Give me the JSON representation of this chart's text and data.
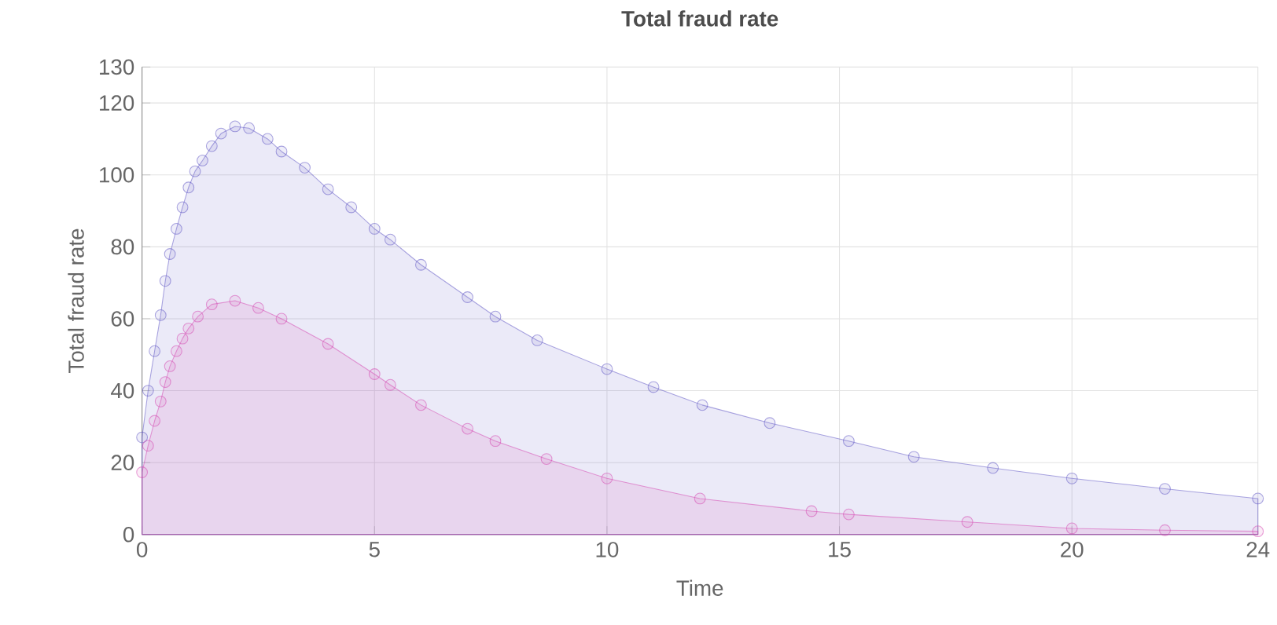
{
  "chart_data": {
    "type": "area",
    "title": "Total fraud rate",
    "xlabel": "Time",
    "ylabel": "Total fraud rate",
    "xlim": [
      0,
      24
    ],
    "xticks": [
      0,
      5,
      10,
      15,
      20,
      24
    ],
    "ylim": [
      0,
      130
    ],
    "yticks": [
      0,
      20,
      40,
      60,
      80,
      100,
      120,
      130
    ],
    "grid": true,
    "marker": "circle",
    "series": [
      {
        "color": "#5a50c4",
        "x": [
          0,
          0.13,
          0.27,
          0.4,
          0.5,
          0.6,
          0.74,
          0.87,
          1.0,
          1.14,
          1.3,
          1.5,
          1.7,
          2.0,
          2.3,
          2.7,
          3.0,
          3.5,
          4.0,
          4.5,
          5.0,
          5.34,
          6.0,
          7.0,
          7.6,
          8.5,
          10.0,
          11.0,
          12.05,
          13.5,
          15.2,
          16.6,
          18.3,
          20.0,
          22.0,
          24.0
        ],
        "values": [
          27,
          40,
          51,
          61,
          70.5,
          78,
          85,
          91,
          96.5,
          101,
          104,
          108,
          111.5,
          113.5,
          113,
          110,
          106.5,
          102,
          96,
          91,
          85,
          82,
          75,
          66,
          60.6,
          54,
          46,
          41,
          36,
          31,
          26,
          21.6,
          18.5,
          15.6,
          12.7,
          10
        ]
      },
      {
        "color": "#d63fb0",
        "x": [
          0,
          0.13,
          0.27,
          0.4,
          0.5,
          0.6,
          0.74,
          0.87,
          1.0,
          1.2,
          1.5,
          2.0,
          2.5,
          3.0,
          4.0,
          5.0,
          5.34,
          6.0,
          7.0,
          7.6,
          8.7,
          10.0,
          12.0,
          14.4,
          15.2,
          17.75,
          20.0,
          22.0,
          24.0
        ],
        "values": [
          17.3,
          24.7,
          31.6,
          37,
          42.4,
          46.8,
          51,
          54.5,
          57.3,
          60.6,
          64,
          65,
          63,
          60,
          53,
          44.6,
          41.6,
          36,
          29.4,
          26,
          21,
          15.6,
          10,
          6.5,
          5.6,
          3.5,
          1.7,
          1.2,
          0.9
        ]
      }
    ]
  }
}
